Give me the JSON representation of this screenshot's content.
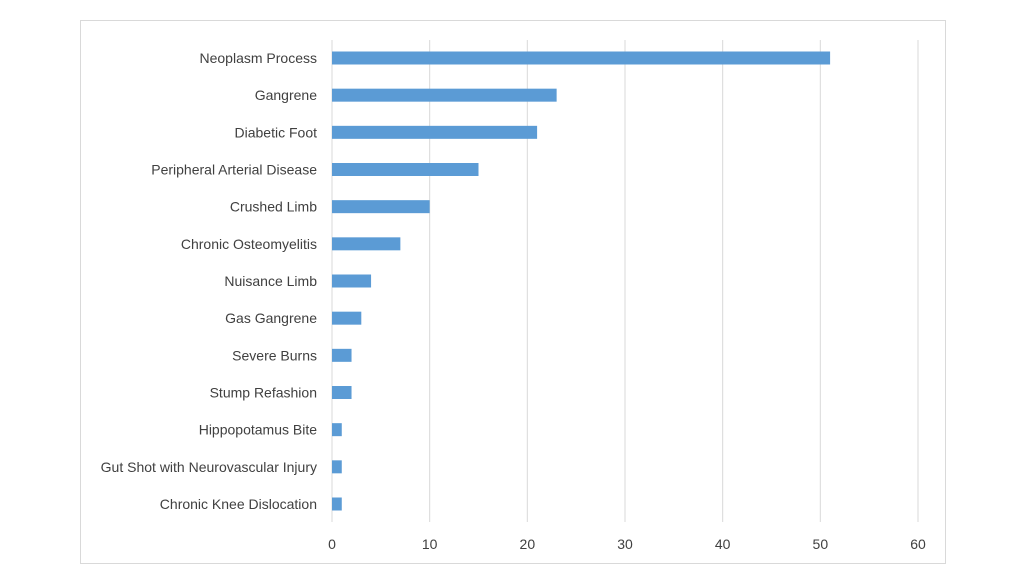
{
  "chart_data": {
    "type": "bar",
    "orientation": "horizontal",
    "categories": [
      "Neoplasm Process",
      "Gangrene",
      "Diabetic Foot",
      "Peripheral Arterial Disease",
      "Crushed Limb",
      "Chronic Osteomyelitis",
      "Nuisance Limb",
      "Gas Gangrene",
      "Severe Burns",
      "Stump Refashion",
      "Hippopotamus Bite",
      "Gut Shot with Neurovascular Injury",
      "Chronic Knee Dislocation"
    ],
    "values": [
      51,
      23,
      21,
      15,
      10,
      7,
      4,
      3,
      2,
      2,
      1,
      1,
      1
    ],
    "xlim": [
      0,
      60
    ],
    "xticks": [
      0,
      10,
      20,
      30,
      40,
      50,
      60
    ],
    "grid": "vertical",
    "legend": "none",
    "bar_color": "#5b9bd5",
    "grid_color": "#d9d9d9",
    "text_color": "#404040"
  }
}
